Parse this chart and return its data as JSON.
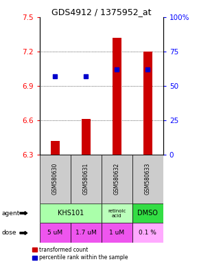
{
  "title": "GDS4912 / 1375952_at",
  "samples": [
    "GSM580630",
    "GSM580631",
    "GSM580632",
    "GSM580633"
  ],
  "bar_values": [
    6.42,
    6.61,
    7.32,
    7.2
  ],
  "bar_bottom": 6.3,
  "percentile_values": [
    57,
    57,
    62,
    62
  ],
  "bar_color": "#cc0000",
  "dot_color": "#0000cc",
  "ylim_left": [
    6.3,
    7.5
  ],
  "ylim_right": [
    0,
    100
  ],
  "yticks_left": [
    6.3,
    6.6,
    6.9,
    7.2,
    7.5
  ],
  "yticks_right": [
    0,
    25,
    50,
    75,
    100
  ],
  "ytick_labels_right": [
    "0",
    "25",
    "50",
    "75",
    "100%"
  ],
  "dose_labels": [
    "5 uM",
    "1.7 uM",
    "1 uM",
    "0.1 %"
  ],
  "sample_bg": "#cccccc",
  "khs101_color": "#aaffaa",
  "retinoic_color": "#bbffbb",
  "dmso_color": "#33dd44",
  "dose_color_main": "#ee55ee",
  "dose_color_last": "#ffaaff",
  "legend_red": "transformed count",
  "legend_blue": "percentile rank within the sample"
}
